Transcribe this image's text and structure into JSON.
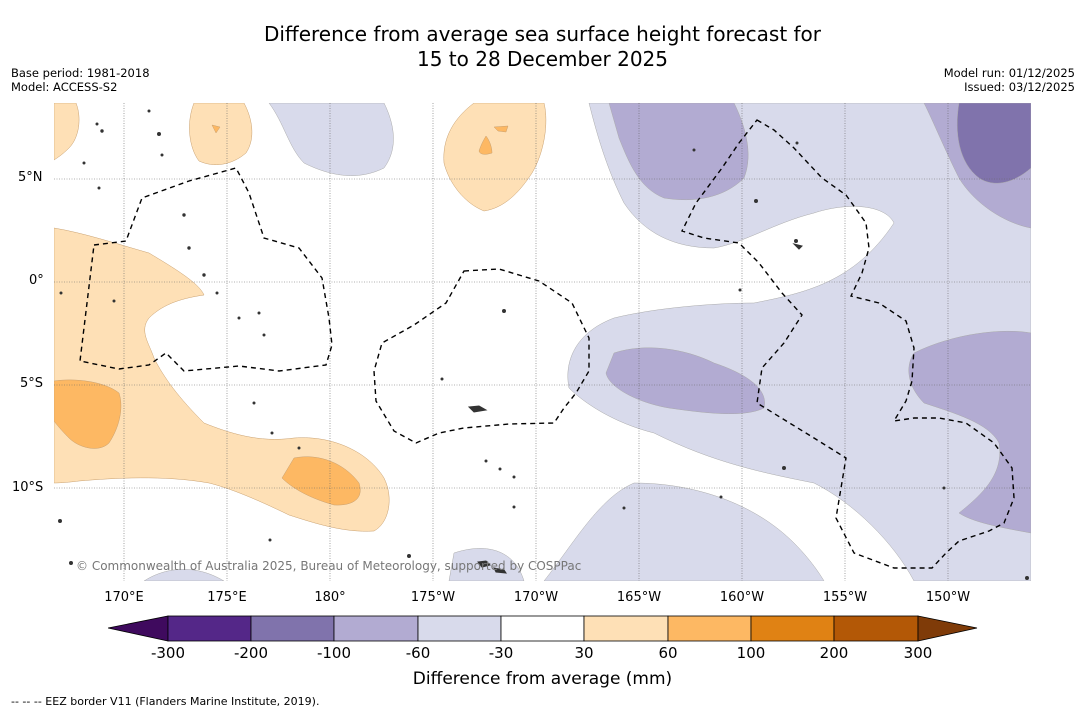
{
  "title": {
    "line1": "Difference from average sea surface height forecast for",
    "line2": "15 to 28 December 2025"
  },
  "meta_left": {
    "base_period": "Base period: 1981-2018",
    "model": "Model: ACCESS-S2"
  },
  "meta_right": {
    "model_run": "Model run: 01/12/2025",
    "issued": "Issued: 03/12/2025"
  },
  "map": {
    "region": "Tropical South-West Pacific",
    "lat_labels": [
      "5°N",
      "0°",
      "5°S",
      "10°S"
    ],
    "lon_labels": [
      "170°E",
      "175°E",
      "180°",
      "175°W",
      "170°W",
      "165°W",
      "160°W",
      "155°W",
      "150°W"
    ],
    "copyright": "© Commonwealth of Australia 2025, Bureau of Meteorology, supported by COSPPac"
  },
  "colorbar": {
    "title": "Difference from average (mm)",
    "labels": [
      "-300",
      "-200",
      "-100",
      "-60",
      "-30",
      "30",
      "60",
      "100",
      "200",
      "300"
    ],
    "colors": {
      "below_min": "#3f0a5e",
      "c1": "#542788",
      "c2": "#8073ac",
      "c3": "#b2abd2",
      "c4": "#d8daeb",
      "c5": "#ffffff",
      "c6": "#fee0b6",
      "c7": "#fdb863",
      "c8": "#e08214",
      "c9": "#b35806",
      "above_max": "#7f3b08"
    }
  },
  "legend": {
    "eez_note": "--  --  -- EEZ border V11 (Flanders Marine Institute, 2019)."
  }
}
